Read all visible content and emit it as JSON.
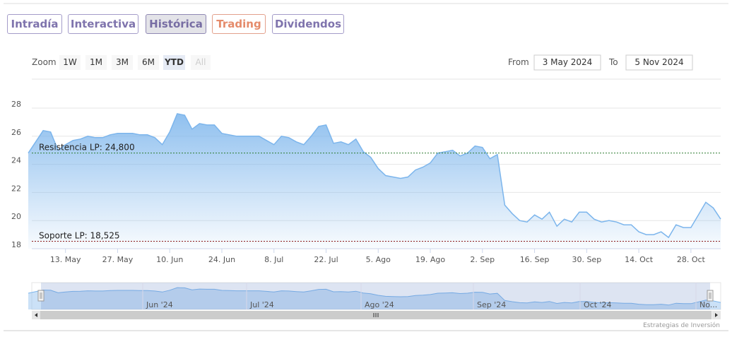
{
  "tabs": [
    "Intradía",
    "Interactiva",
    "Histórica",
    "Trading",
    "Dividendos"
  ],
  "active_tab": 2,
  "zoom": {
    "label": "Zoom",
    "buttons": [
      "1W",
      "1M",
      "3M",
      "6M",
      "YTD",
      "All"
    ],
    "selected": 4,
    "disabled": [
      5
    ]
  },
  "range": {
    "from_label": "From",
    "from": "3 May 2024",
    "to_label": "To",
    "to": "5 Nov 2024"
  },
  "chart_data": {
    "type": "area",
    "color": "#7cb5ec",
    "values": [
      24.8,
      25.6,
      26.4,
      26.3,
      25.0,
      25.4,
      25.7,
      25.8,
      26.0,
      25.9,
      25.9,
      26.1,
      26.2,
      26.2,
      26.2,
      26.1,
      26.1,
      25.9,
      25.4,
      26.3,
      27.6,
      27.5,
      26.5,
      26.9,
      26.8,
      26.8,
      26.2,
      26.1,
      26.0,
      26.0,
      26.0,
      26.0,
      25.7,
      25.4,
      26.0,
      25.9,
      25.6,
      25.4,
      26.0,
      26.7,
      26.8,
      25.5,
      25.6,
      25.4,
      25.8,
      24.9,
      24.5,
      23.7,
      23.2,
      23.1,
      23.0,
      23.1,
      23.6,
      23.8,
      24.1,
      24.8,
      24.9,
      25.0,
      24.6,
      24.8,
      25.3,
      25.2,
      24.4,
      24.7,
      21.1,
      20.5,
      20.0,
      19.9,
      20.4,
      20.1,
      20.6,
      19.6,
      20.1,
      19.9,
      20.6,
      20.6,
      20.1,
      19.9,
      20.0,
      19.9,
      19.7,
      19.7,
      19.2,
      19.0,
      19.0,
      19.2,
      18.8,
      19.7,
      19.5,
      19.5,
      20.4,
      21.3,
      20.9,
      20.1
    ],
    "xlim": [
      0,
      93
    ],
    "xticks": [
      {
        "value": 5,
        "label": "13. May"
      },
      {
        "value": 12,
        "label": "27. May"
      },
      {
        "value": 19,
        "label": "10. Jun"
      },
      {
        "value": 26,
        "label": "24. Jun"
      },
      {
        "value": 33,
        "label": "8. Jul"
      },
      {
        "value": 40,
        "label": "22. Jul"
      },
      {
        "value": 47,
        "label": "5. Ago"
      },
      {
        "value": 54,
        "label": "19. Ago"
      },
      {
        "value": 61,
        "label": "2. Sep"
      },
      {
        "value": 68,
        "label": "16. Sep"
      },
      {
        "value": 75,
        "label": "30. Sep"
      },
      {
        "value": 82,
        "label": "14. Oct"
      },
      {
        "value": 89,
        "label": "28. Oct"
      }
    ],
    "ylim": [
      18,
      28
    ],
    "yticks": [
      18,
      20,
      22,
      24,
      26,
      28
    ],
    "grid": true,
    "plot_lines": [
      {
        "value": 24.8,
        "label": "Resistencia LP: 24,800",
        "color": "#2e7d32"
      },
      {
        "value": 18.525,
        "label": "Soporte LP: 18,525",
        "color": "#8b1a1a"
      }
    ],
    "navigator": {
      "labels": [
        "Jun '24",
        "Jul '24",
        "Ago '24",
        "Sep '24",
        "Oct '24",
        "No..."
      ]
    }
  },
  "credits": "Estrategias de Inversión"
}
